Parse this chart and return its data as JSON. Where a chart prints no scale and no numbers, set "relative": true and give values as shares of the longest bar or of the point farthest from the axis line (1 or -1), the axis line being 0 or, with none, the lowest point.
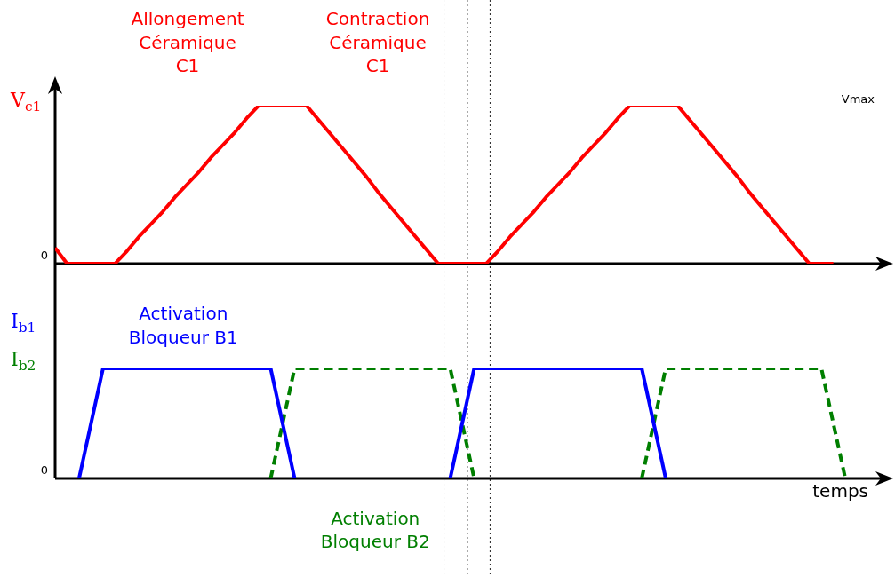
{
  "chart_data": [
    {
      "type": "line",
      "relative": true,
      "ylabel": "V$_{c1}$",
      "categories": [
        null,
        null,
        null,
        null,
        null,
        null,
        null,
        null,
        null,
        null,
        null,
        null,
        null,
        null,
        null,
        null,
        null,
        null,
        null,
        null,
        null,
        null,
        null,
        null,
        null,
        null,
        null,
        null,
        null,
        null,
        null,
        null,
        null,
        null,
        null,
        null,
        null,
        null,
        null,
        null,
        null,
        null,
        null,
        null,
        null,
        null,
        null,
        null,
        null,
        null,
        null,
        null,
        null,
        null,
        null,
        null,
        null,
        null,
        null,
        null,
        null,
        null,
        null,
        null,
        null,
        null,
        null,
        null,
        null,
        null,
        null
      ],
      "series": [
        {
          "color": "#ff0000",
          "values": [
            0.1,
            0,
            0,
            0,
            0,
            0,
            0.08,
            0.17,
            0.25,
            0.33,
            0.42,
            0.5,
            0.58,
            0.67,
            0.75,
            0.83,
            0.92,
            1,
            1,
            1,
            1,
            1,
            0.91,
            0.82,
            0.73,
            0.64,
            0.55,
            0.45,
            0.36,
            0.27,
            0.18,
            0.09,
            0,
            0,
            0,
            0,
            0,
            0.08,
            0.17,
            0.25,
            0.33,
            0.42,
            0.5,
            0.58,
            0.67,
            0.75,
            0.83,
            0.92,
            1,
            1,
            1,
            1,
            1,
            0.91,
            0.82,
            0.73,
            0.64,
            0.55,
            0.45,
            0.36,
            0.27,
            0.18,
            0.09,
            0,
            0,
            0,
            null,
            null,
            null,
            null,
            null
          ]
        }
      ],
      "annotations": [
        "Allongement\nCéramique\nC1",
        "Contraction\nCéramique\nC1",
        "Vmax",
        "0"
      ]
    },
    {
      "type": "line",
      "relative": true,
      "xlabel": "temps",
      "categories": [
        null,
        null,
        null,
        null,
        null,
        null,
        null,
        null,
        null,
        null,
        null,
        null,
        null,
        null,
        null,
        null,
        null,
        null,
        null,
        null,
        null,
        null,
        null,
        null,
        null,
        null,
        null,
        null,
        null,
        null,
        null,
        null,
        null,
        null,
        null,
        null,
        null,
        null,
        null,
        null,
        null,
        null,
        null,
        null,
        null,
        null,
        null,
        null,
        null,
        null,
        null,
        null,
        null,
        null,
        null,
        null,
        null,
        null,
        null,
        null,
        null,
        null,
        null,
        null,
        null,
        null,
        null,
        null,
        null,
        null,
        null
      ],
      "series": [
        {
          "name": "I$_{b1}$",
          "color": "#0000ff",
          "values": [
            null,
            null,
            0,
            0.5,
            1,
            1,
            1,
            1,
            1,
            1,
            1,
            1,
            1,
            1,
            1,
            1,
            1,
            1,
            1,
            0.5,
            0,
            null,
            null,
            null,
            null,
            null,
            null,
            null,
            null,
            null,
            null,
            null,
            null,
            0,
            0.5,
            1,
            1,
            1,
            1,
            1,
            1,
            1,
            1,
            1,
            1,
            1,
            1,
            1,
            1,
            1,
            0.5,
            0,
            null,
            null,
            null,
            null,
            null,
            null,
            null,
            null,
            null,
            null,
            null,
            null,
            null,
            null,
            null,
            null,
            null,
            null,
            null
          ]
        },
        {
          "name": "I$_{b2}$",
          "color": "#007f00",
          "line_style": "dashed",
          "values": [
            null,
            null,
            null,
            null,
            null,
            null,
            null,
            null,
            null,
            null,
            null,
            null,
            null,
            null,
            null,
            null,
            null,
            null,
            0,
            0.5,
            1,
            1,
            1,
            1,
            1,
            1,
            1,
            1,
            1,
            1,
            1,
            1,
            1,
            1,
            0.5,
            0,
            null,
            null,
            null,
            null,
            null,
            null,
            null,
            null,
            null,
            null,
            null,
            null,
            null,
            0,
            0.5,
            1,
            1,
            1,
            1,
            1,
            1,
            1,
            1,
            1,
            1,
            1,
            1,
            1,
            1,
            0.5,
            0,
            null,
            null,
            null,
            null
          ]
        }
      ],
      "annotations": [
        "Activation\nBloqueur B1",
        "Activation\nBloqueur B2",
        "0"
      ]
    }
  ]
}
